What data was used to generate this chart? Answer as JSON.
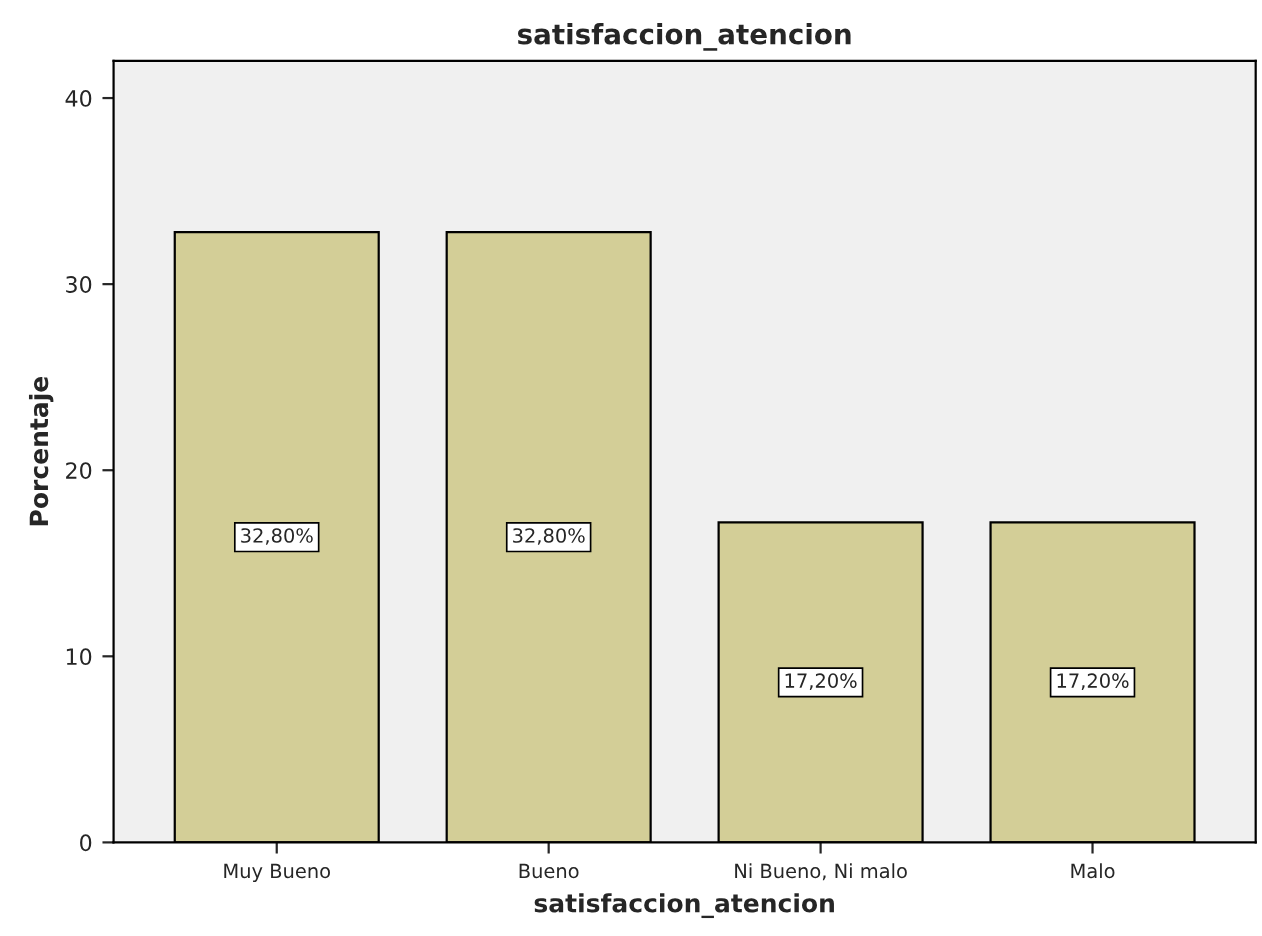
{
  "chart_data": {
    "type": "bar",
    "title": "satisfaccion_atencion",
    "xlabel": "satisfaccion_atencion",
    "ylabel": "Porcentaje",
    "categories": [
      "Muy Bueno",
      "Bueno",
      "Ni Bueno, Ni malo",
      "Malo"
    ],
    "values": [
      32.8,
      32.8,
      17.2,
      17.2
    ],
    "value_labels": [
      "32,80%",
      "32,80%",
      "17,20%",
      "17,20%"
    ],
    "color": "#d3ce97",
    "ylim": [
      0,
      42
    ],
    "yticks": [
      0,
      10,
      20,
      30,
      40
    ],
    "grid": false
  }
}
